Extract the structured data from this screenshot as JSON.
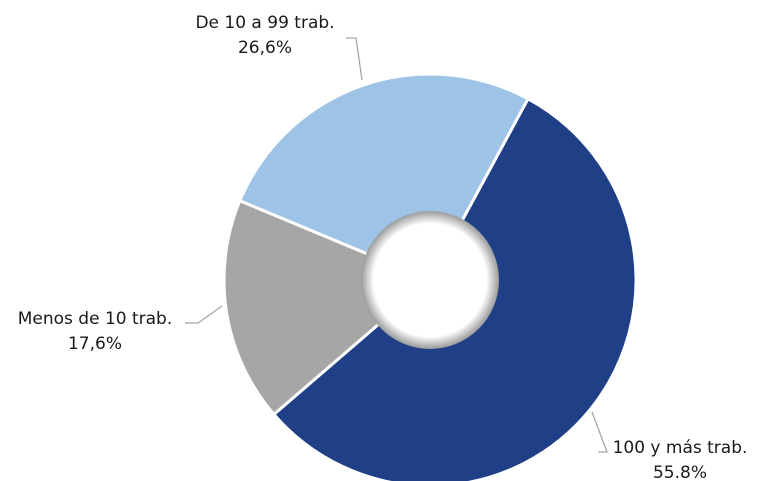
{
  "chart_data": {
    "type": "donut",
    "categories": [
      "100 y más trab.",
      "Menos de 10 trab.",
      "De 10 a 99 trab."
    ],
    "values": [
      55.8,
      17.6,
      26.6
    ],
    "value_labels": [
      "55.8%",
      "17,6%",
      "26,6%"
    ],
    "colors": [
      "#1f3f87",
      "#a6a6a6",
      "#9dc3e6"
    ]
  }
}
